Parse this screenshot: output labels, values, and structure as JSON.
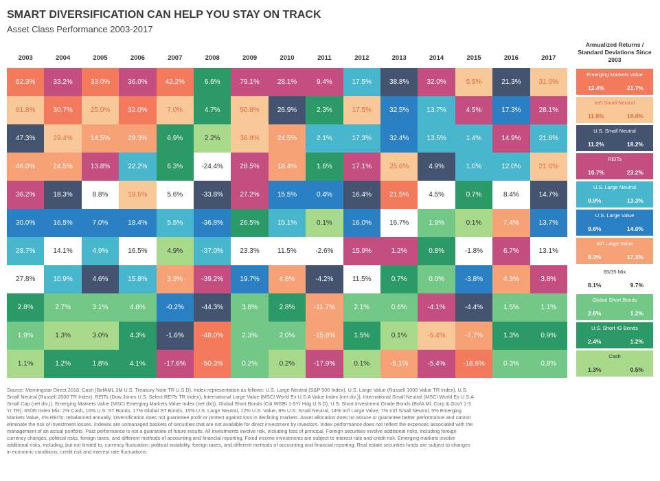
{
  "title": "SMART DIVERSIFICATION CAN HELP YOU STAY ON TRACK",
  "subtitle": "Asset Class Performance 2003-2017",
  "side_header": "Annualized Returns / Standard Deviations Since 2003",
  "colors": {
    "EM": "#f47a5e",
    "ISN": "#f9c898",
    "USN": "#445370",
    "REIT": "#c44e80",
    "ULN": "#48b6cc",
    "ULV": "#2b7fc3",
    "ILV": "#f6a176",
    "MIX": "#ffffff",
    "GSB": "#73c887",
    "USG": "#2b9a66",
    "CASH": "#a9da8c"
  },
  "text_colors": {
    "EM": "#ffffff",
    "ISN": "#e06a3a",
    "USN": "#ffffff",
    "REIT": "#ffffff",
    "ULN": "#ffffff",
    "ULV": "#ffffff",
    "ILV": "#ffffff",
    "MIX": "#333333",
    "GSB": "#ffffff",
    "USG": "#ffffff",
    "CASH": "#333333"
  },
  "assets": [
    {
      "key": "EM",
      "name": "Emerging Markets Value",
      "ret": "12.4%",
      "sd": "21.7%"
    },
    {
      "key": "ISN",
      "name": "Int'l Small Neutral",
      "ret": "11.8%",
      "sd": "18.0%"
    },
    {
      "key": "USN",
      "name": "U.S. Small Neutral",
      "ret": "11.2%",
      "sd": "18.2%"
    },
    {
      "key": "REIT",
      "name": "REITs",
      "ret": "10.7%",
      "sd": "23.2%"
    },
    {
      "key": "ULN",
      "name": "U.S. Large Neutral",
      "ret": "9.9%",
      "sd": "13.3%"
    },
    {
      "key": "ULV",
      "name": "U.S. Large Value",
      "ret": "9.6%",
      "sd": "14.0%"
    },
    {
      "key": "ILV",
      "name": "Int'l Large Value",
      "ret": "8.3%",
      "sd": "17.3%"
    },
    {
      "key": "MIX",
      "name": "65/35 Mix",
      "ret": "8.1%",
      "sd": "9.7%"
    },
    {
      "key": "GSB",
      "name": "Global Short Bonds",
      "ret": "2.6%",
      "sd": "1.2%"
    },
    {
      "key": "USG",
      "name": "U.S. Short IG Bonds",
      "ret": "2.4%",
      "sd": "1.2%"
    },
    {
      "key": "CASH",
      "name": "Cash",
      "ret": "1.3%",
      "sd": "0.5%"
    }
  ],
  "chart_data": {
    "type": "table",
    "title": "SMART DIVERSIFICATION CAN HELP YOU STAY ON TRACK",
    "subtitle": "Asset Class Performance 2003-2017",
    "years": [
      "2003",
      "2004",
      "2005",
      "2006",
      "2007",
      "2008",
      "2009",
      "2010",
      "2011",
      "2012",
      "2013",
      "2014",
      "2015",
      "2016",
      "2017"
    ],
    "columns": [
      [
        [
          "EM",
          "62.3%"
        ],
        [
          "ISN",
          "61.8%"
        ],
        [
          "USN",
          "47.3%"
        ],
        [
          "ILV",
          "46.0%"
        ],
        [
          "REIT",
          "36.2%"
        ],
        [
          "ULV",
          "30.0%"
        ],
        [
          "ULN",
          "28.7%"
        ],
        [
          "MIX",
          "27.8%"
        ],
        [
          "USG",
          "2.8%"
        ],
        [
          "GSB",
          "1.9%"
        ],
        [
          "CASH",
          "1.1%"
        ]
      ],
      [
        [
          "REIT",
          "33.2%"
        ],
        [
          "EM",
          "30.7%"
        ],
        [
          "ISN",
          "29.4%"
        ],
        [
          "ILV",
          "24.5%"
        ],
        [
          "USN",
          "18.3%"
        ],
        [
          "ULV",
          "16.5%"
        ],
        [
          "MIX",
          "14.1%"
        ],
        [
          "ULN",
          "10.9%"
        ],
        [
          "GSB",
          "2.7%"
        ],
        [
          "CASH",
          "1.3%"
        ],
        [
          "USG",
          "1.2%"
        ]
      ],
      [
        [
          "EM",
          "33.0%"
        ],
        [
          "ISN",
          "25.0%"
        ],
        [
          "ILV",
          "14.5%"
        ],
        [
          "REIT",
          "13.8%"
        ],
        [
          "MIX",
          "8.8%"
        ],
        [
          "ULV",
          "7.0%"
        ],
        [
          "ULN",
          "4.9%"
        ],
        [
          "USN",
          "4.6%"
        ],
        [
          "GSB",
          "3.1%"
        ],
        [
          "CASH",
          "3.0%"
        ],
        [
          "USG",
          "1.8%"
        ]
      ],
      [
        [
          "REIT",
          "36.0%"
        ],
        [
          "EM",
          "32.0%"
        ],
        [
          "ILV",
          "29.3%"
        ],
        [
          "ULN",
          "22.2%"
        ],
        [
          "ISN",
          "19.5%"
        ],
        [
          "ULV",
          "18.4%"
        ],
        [
          "MIX",
          "16.5%"
        ],
        [
          "ULN",
          "15.8%"
        ],
        [
          "GSB",
          "4.8%"
        ],
        [
          "USG",
          "4.3%"
        ],
        [
          "USG",
          "4.1%"
        ]
      ],
      [
        [
          "EM",
          "42.2%"
        ],
        [
          "ISN",
          "7.0%"
        ],
        [
          "USG",
          "6.9%"
        ],
        [
          "USG",
          "6.3%"
        ],
        [
          "MIX",
          "5.6%"
        ],
        [
          "ULN",
          "5.5%"
        ],
        [
          "CASH",
          "4.9%"
        ],
        [
          "ILV",
          "3.3%"
        ],
        [
          "ULV",
          "-0.2%"
        ],
        [
          "USN",
          "-1.6%"
        ],
        [
          "REIT",
          "-17.6%"
        ]
      ],
      [
        [
          "USG",
          "6.6%"
        ],
        [
          "USG",
          "4.7%"
        ],
        [
          "CASH",
          "2.2%"
        ],
        [
          "MIX",
          "-24.4%"
        ],
        [
          "USN",
          "-33.8%"
        ],
        [
          "ULV",
          "-36.8%"
        ],
        [
          "ULN",
          "-37.0%"
        ],
        [
          "REIT",
          "-39.2%"
        ],
        [
          "USN",
          "-44.3%"
        ],
        [
          "EM",
          "-48.0%"
        ],
        [
          "EM",
          "-50.3%"
        ]
      ],
      [
        [
          "REIT",
          "79.1%"
        ],
        [
          "ISN",
          "50.8%"
        ],
        [
          "ISN",
          "36.8%"
        ],
        [
          "REIT",
          "28.5%"
        ],
        [
          "REIT",
          "27.2%"
        ],
        [
          "USG",
          "26.5%"
        ],
        [
          "MIX",
          "23.3%"
        ],
        [
          "ULV",
          "19.7%"
        ],
        [
          "GSB",
          "3.8%"
        ],
        [
          "GSB",
          "2.3%"
        ],
        [
          "GSB",
          "0.2%"
        ]
      ],
      [
        [
          "REIT",
          "28.1%"
        ],
        [
          "USN",
          "26.9%"
        ],
        [
          "ILV",
          "24.5%"
        ],
        [
          "ILV",
          "18.4%"
        ],
        [
          "ULV",
          "15.5%"
        ],
        [
          "ULN",
          "15.1%"
        ],
        [
          "MIX",
          "11.5%"
        ],
        [
          "ILV",
          "4.8%"
        ],
        [
          "USG",
          "2.8%"
        ],
        [
          "GSB",
          "2.0%"
        ],
        [
          "CASH",
          "0.2%"
        ]
      ],
      [
        [
          "REIT",
          "9.4%"
        ],
        [
          "USG",
          "2.3%"
        ],
        [
          "ULN",
          "2.1%"
        ],
        [
          "USG",
          "1.6%"
        ],
        [
          "ULV",
          "0.4%"
        ],
        [
          "CASH",
          "0.1%"
        ],
        [
          "MIX",
          "-2.6%"
        ],
        [
          "USN",
          "-4.2%"
        ],
        [
          "ILV",
          "-11.7%"
        ],
        [
          "ILV",
          "-15.8%"
        ],
        [
          "REIT",
          "-17.9%"
        ]
      ],
      [
        [
          "ULN",
          "17.5%"
        ],
        [
          "ISN",
          "17.5%"
        ],
        [
          "ULN",
          "17.3%"
        ],
        [
          "REIT",
          "17.1%"
        ],
        [
          "USN",
          "16.4%"
        ],
        [
          "ULV",
          "16.0%"
        ],
        [
          "REIT",
          "15.9%"
        ],
        [
          "MIX",
          "11.5%"
        ],
        [
          "GSB",
          "2.1%"
        ],
        [
          "USG",
          "1.5%"
        ],
        [
          "CASH",
          "0.1%"
        ]
      ],
      [
        [
          "USN",
          "38.8%"
        ],
        [
          "ULV",
          "32.5%"
        ],
        [
          "ULV",
          "32.4%"
        ],
        [
          "ISN",
          "25.6%"
        ],
        [
          "EM",
          "21.5%"
        ],
        [
          "MIX",
          "16.7%"
        ],
        [
          "REIT",
          "1.2%"
        ],
        [
          "USG",
          "0.7%"
        ],
        [
          "GSB",
          "0.6%"
        ],
        [
          "CASH",
          "0.1%"
        ],
        [
          "ILV",
          "-5.1%"
        ]
      ],
      [
        [
          "REIT",
          "32.0%"
        ],
        [
          "ULN",
          "13.7%"
        ],
        [
          "ULN",
          "13.5%"
        ],
        [
          "USN",
          "4.9%"
        ],
        [
          "MIX",
          "4.5%"
        ],
        [
          "GSB",
          "1.9%"
        ],
        [
          "USG",
          "0.8%"
        ],
        [
          "GSB",
          "0.0%"
        ],
        [
          "REIT",
          "-4.1%"
        ],
        [
          "ISN",
          "-5.4%"
        ],
        [
          "REIT",
          "-5.4%"
        ]
      ],
      [
        [
          "ISN",
          "5.5%"
        ],
        [
          "REIT",
          "4.5%"
        ],
        [
          "ULN",
          "1.4%"
        ],
        [
          "ULN",
          "1.0%"
        ],
        [
          "USG",
          "0.7%"
        ],
        [
          "CASH",
          "0.1%"
        ],
        [
          "MIX",
          "-1.8%"
        ],
        [
          "ULV",
          "-3.8%"
        ],
        [
          "USN",
          "-4.4%"
        ],
        [
          "ILV",
          "-7.7%"
        ],
        [
          "EM",
          "-18.6%"
        ]
      ],
      [
        [
          "USN",
          "21.3%"
        ],
        [
          "ULV",
          "17.3%"
        ],
        [
          "REIT",
          "14.9%"
        ],
        [
          "ULN",
          "12.0%"
        ],
        [
          "MIX",
          "8.4%"
        ],
        [
          "ILV",
          "7.4%"
        ],
        [
          "REIT",
          "6.7%"
        ],
        [
          "ILV",
          "4.3%"
        ],
        [
          "GSB",
          "1.5%"
        ],
        [
          "USG",
          "1.3%"
        ],
        [
          "GSB",
          "0.3%"
        ]
      ],
      [
        [
          "ISN",
          "31.0%"
        ],
        [
          "REIT",
          "28.1%"
        ],
        [
          "ULN",
          "21.8%"
        ],
        [
          "ISN",
          "21.0%"
        ],
        [
          "USN",
          "14.7%"
        ],
        [
          "ULV",
          "13.7%"
        ],
        [
          "MIX",
          "13.1%"
        ],
        [
          "REIT",
          "3.8%"
        ],
        [
          "GSB",
          "1.1%"
        ],
        [
          "USG",
          "0.9%"
        ],
        [
          "GSB",
          "0.8%"
        ]
      ]
    ]
  },
  "footnote": "Source: Morningstar Direct 2018. Cash (BofAML 3M U.S. Treasury Note TR U.S.D). Index representation as follows: U.S. Large Neutral (S&P 500 Index), U.S. Large Value (Russell 1000 Value TR Index), U.S. Small Neutral (Russell 2000 TR Index), REITs (Dow Jones U.S. Select REITs TR Index), International Large Value (MSCI World Ex U.S.A Value Index (net div.)), International Small Neutral (MSCI World Ex U.S.A Small Cap (net div.)), Emerging Markets Value (MSCI Emerging Markets Value Index (net div)), Global Short Bonds (Citi WGBI 1-5Yr Hdg U.S.D), U.S. Short Investment Grade Bonds (BofA ML Corp & Gov't 1-3 Yr TR). 65/35 Index Mix: 2% Cash, 16% U.S. ST Bonds, 17% Global ST Bonds, 15% U.S. Large Neutral, 12% U.S. Value, 8% U.S. Small Neutral, 14% Int'l Large Value, 7% Int'l Small Neutral, 5% Emerging Markets Value, 4% REITs; rebalanced annually. Diversification does not guarantee profit or protect against loss in declining markets. Asset allocation does no assure or guarantee better performance and cannot eliminate the risk of investment losses. Indexes are unmanaged baskets of securities that are not available for direct investment by investors. Index performance does not reflect the expenses associated with the management of an actual portfolio. Past performance is not a guarantee of future results. All investments involve risk, including loss of principal. Foreign securities involve additional risks, including foreign currency changes, political risks, foreign taxes, and different methods of accounting and financial reporting. Fixed income investments are subject to interest rate and credit risk. Emerging markets involve additional risks, including, but not limited to, currency fluctuation, political instability, foreign taxes, and different methods of accounting and financial reporting. Real estate securities funds are subject to changes in economic conditions, credit risk and interest rate fluctuations."
}
